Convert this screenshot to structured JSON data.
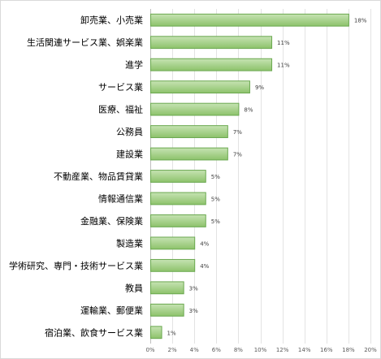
{
  "chart_data": {
    "type": "bar",
    "orientation": "horizontal",
    "categories": [
      "卸売業、小売業",
      "生活関連サービス業、娯楽業",
      "進学",
      "サービス業",
      "医療、福祉",
      "公務員",
      "建設業",
      "不動産業、物品賃貸業",
      "情報通信業",
      "金融業、保険業",
      "製造業",
      "学術研究、専門・技術サービス業",
      "教員",
      "運輸業、郵便業",
      "宿泊業、飲食サービス業"
    ],
    "values": [
      18,
      11,
      11,
      9,
      8,
      7,
      7,
      5,
      5,
      5,
      4,
      4,
      3,
      3,
      1
    ],
    "value_labels": [
      "18%",
      "11%",
      "11%",
      "9%",
      "8%",
      "7%",
      "7%",
      "5%",
      "5%",
      "5%",
      "4%",
      "4%",
      "3%",
      "3%",
      "1%"
    ],
    "xlim": [
      0,
      20
    ],
    "xticks": [
      0,
      2,
      4,
      6,
      8,
      10,
      12,
      14,
      16,
      18,
      20
    ],
    "xtick_labels": [
      "0%",
      "2%",
      "4%",
      "6%",
      "8%",
      "10%",
      "12%",
      "14%",
      "16%",
      "18%",
      "20%"
    ],
    "grid": "vertical",
    "legend": "none",
    "colors": {
      "bar_fill_top": "#c6e3b3",
      "bar_fill_bottom": "#8dc26b",
      "bar_stroke": "#6aa84f"
    }
  }
}
